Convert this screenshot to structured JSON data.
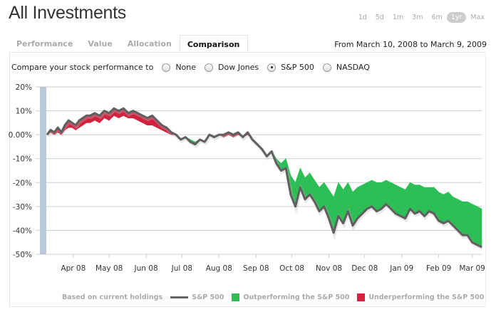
{
  "header": {
    "title": "All Investments",
    "ranges": [
      {
        "label": "1d",
        "active": false
      },
      {
        "label": "5d",
        "active": false
      },
      {
        "label": "1m",
        "active": false
      },
      {
        "label": "3m",
        "active": false
      },
      {
        "label": "6m",
        "active": false
      },
      {
        "label": "1yr",
        "active": true
      },
      {
        "label": "Max",
        "active": false
      }
    ]
  },
  "tabs": [
    {
      "label": "Performance",
      "active": false
    },
    {
      "label": "Value",
      "active": false
    },
    {
      "label": "Allocation",
      "active": false
    },
    {
      "label": "Comparison",
      "active": true
    }
  ],
  "date_range": "From March 10, 2008 to March 9, 2009",
  "compare": {
    "label": "Compare your stock performance to",
    "options": [
      {
        "label": "None",
        "checked": false
      },
      {
        "label": "Dow Jones",
        "checked": false
      },
      {
        "label": "S&P 500",
        "checked": true
      },
      {
        "label": "NASDAQ",
        "checked": false
      }
    ]
  },
  "colors": {
    "sp500_line": "#5f5f5f",
    "outperform": "#2dbf55",
    "underperform": "#d2223e",
    "gridline": "#c8cdd2",
    "y_band": "#b9c9da"
  },
  "legend": {
    "note": "Based on current holdings",
    "items": [
      {
        "type": "line",
        "label": "S&P 500"
      },
      {
        "type": "swatch",
        "label": "Outperforming the S&P 500",
        "color": "#2dbf55"
      },
      {
        "type": "swatch",
        "label": "Underperforming the S&P 500",
        "color": "#d2223e"
      }
    ]
  },
  "chart_data": {
    "type": "area",
    "title": "",
    "xlabel": "",
    "ylabel": "",
    "ylim": [
      -50,
      20
    ],
    "yticks": [
      "20%",
      "10%",
      "0.00%",
      "-10%",
      "-20%",
      "-30%",
      "-40%",
      "-50%"
    ],
    "ytick_values": [
      20,
      10,
      0,
      -10,
      -20,
      -30,
      -40,
      -50
    ],
    "xticks": [
      {
        "label": "Apr 08",
        "day": 22
      },
      {
        "label": "May 08",
        "day": 52
      },
      {
        "label": "Jun 08",
        "day": 83
      },
      {
        "label": "Jul 08",
        "day": 113
      },
      {
        "label": "Aug 08",
        "day": 144
      },
      {
        "label": "Sep 08",
        "day": 175
      },
      {
        "label": "Oct 08",
        "day": 205
      },
      {
        "label": "Nov 08",
        "day": 236
      },
      {
        "label": "Dec 08",
        "day": 266
      },
      {
        "label": "Jan 09",
        "day": 297
      },
      {
        "label": "Feb 09",
        "day": 328
      },
      {
        "label": "Mar 09",
        "day": 356
      }
    ],
    "x_domain_days": [
      0,
      364
    ],
    "grid": true,
    "series": [
      {
        "name": "S&P 500",
        "x_days": [
          0,
          3,
          6,
          9,
          12,
          15,
          18,
          21,
          24,
          27,
          30,
          33,
          36,
          40,
          44,
          48,
          52,
          56,
          60,
          64,
          68,
          72,
          76,
          80,
          84,
          88,
          92,
          96,
          100,
          104,
          108,
          112,
          116,
          120,
          124,
          128,
          132,
          136,
          140,
          144,
          148,
          152,
          156,
          160,
          164,
          168,
          172,
          176,
          180,
          184,
          188,
          192,
          196,
          200,
          204,
          208,
          212,
          216,
          220,
          224,
          228,
          232,
          236,
          240,
          244,
          248,
          252,
          256,
          260,
          264,
          268,
          272,
          276,
          280,
          284,
          288,
          292,
          296,
          300,
          304,
          308,
          312,
          316,
          320,
          324,
          328,
          332,
          336,
          340,
          344,
          348,
          352,
          356,
          360,
          364
        ],
        "values": [
          0,
          2,
          1,
          3,
          1,
          4,
          6,
          5,
          4,
          6,
          7,
          8,
          8,
          9,
          8,
          10,
          9,
          11,
          10,
          11,
          9,
          10,
          9,
          8,
          7,
          8,
          6,
          4,
          3,
          1,
          0,
          -2,
          -1,
          -3,
          -4,
          -2,
          -3,
          0,
          -1,
          0,
          0,
          1,
          0,
          1,
          -1,
          1,
          -2,
          -4,
          -6,
          -9,
          -7,
          -12,
          -15,
          -14,
          -25,
          -30,
          -22,
          -27,
          -25,
          -28,
          -32,
          -30,
          -35,
          -41,
          -34,
          -37,
          -32,
          -38,
          -35,
          -33,
          -31,
          -30,
          -32,
          -31,
          -29,
          -31,
          -33,
          -34,
          -35,
          -31,
          -33,
          -32,
          -34,
          -32,
          -33,
          -36,
          -37,
          -36,
          -38,
          -40,
          -42,
          -42,
          -45,
          -46,
          -47
        ],
        "color": "#5f5f5f"
      },
      {
        "name": "Your portfolio",
        "x_days": [
          0,
          3,
          6,
          9,
          12,
          15,
          18,
          21,
          24,
          27,
          30,
          33,
          36,
          40,
          44,
          48,
          52,
          56,
          60,
          64,
          68,
          72,
          76,
          80,
          84,
          88,
          92,
          96,
          100,
          104,
          108,
          112,
          116,
          120,
          124,
          128,
          132,
          136,
          140,
          144,
          148,
          152,
          156,
          160,
          164,
          168,
          172,
          176,
          180,
          184,
          188,
          192,
          196,
          200,
          204,
          208,
          212,
          216,
          220,
          224,
          228,
          232,
          236,
          240,
          244,
          248,
          252,
          256,
          260,
          264,
          268,
          272,
          276,
          280,
          284,
          288,
          292,
          296,
          300,
          304,
          308,
          312,
          316,
          320,
          324,
          328,
          332,
          336,
          340,
          344,
          348,
          352,
          356,
          360,
          364
        ],
        "values": [
          0,
          1,
          0,
          1,
          0,
          2,
          3,
          3,
          2,
          3,
          4,
          5,
          5,
          6,
          5,
          7,
          6,
          8,
          7,
          8,
          7,
          7,
          6,
          5,
          4,
          4,
          3,
          2,
          1,
          0,
          0,
          -2,
          -1,
          -2,
          -3,
          -2,
          -3,
          0,
          -1,
          0,
          -1,
          0,
          -1,
          0,
          -1,
          0,
          -2,
          -4,
          -6,
          -9,
          -7,
          -10,
          -12,
          -10,
          -17,
          -20,
          -14,
          -18,
          -16,
          -19,
          -22,
          -20,
          -23,
          -26,
          -20,
          -23,
          -20,
          -24,
          -22,
          -21,
          -20,
          -19,
          -20,
          -20,
          -19,
          -20,
          -21,
          -22,
          -23,
          -20,
          -21,
          -21,
          -22,
          -22,
          -22,
          -24,
          -25,
          -24,
          -26,
          -27,
          -28,
          -28,
          -29,
          -30,
          -31
        ],
        "note": "Filled band between portfolio and S&P 500: green where portfolio is above, red where below"
      }
    ]
  }
}
